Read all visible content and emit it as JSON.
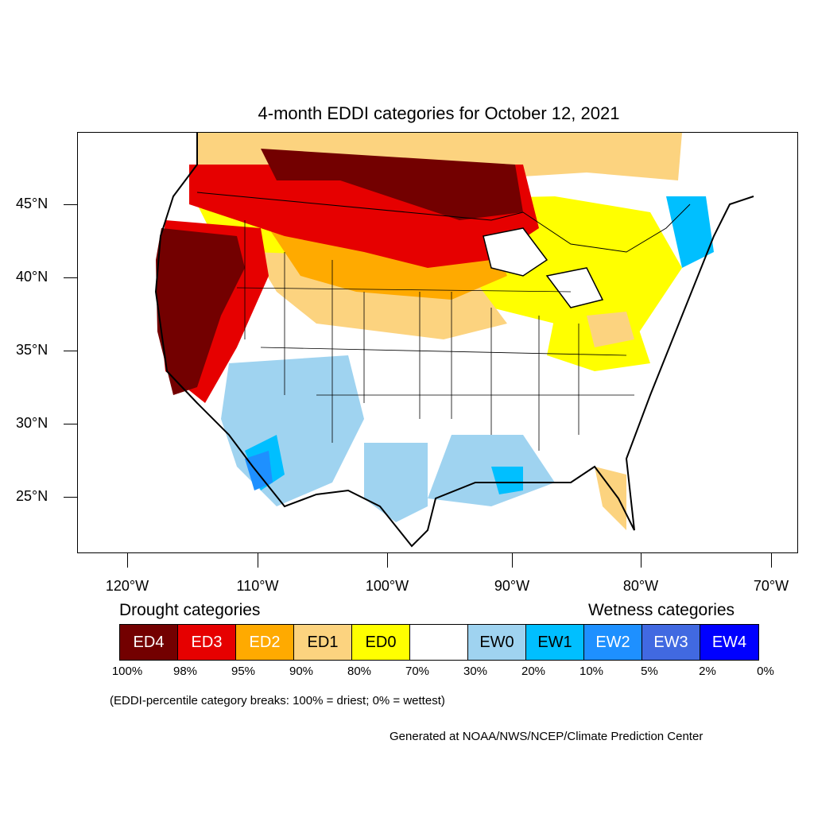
{
  "title": "4-month EDDI categories for October 12, 2021",
  "map": {
    "latitude_labels": [
      "45°N",
      "40°N",
      "35°N",
      "30°N",
      "25°N"
    ],
    "longitude_labels": [
      "120°W",
      "110°W",
      "100°W",
      "90°W",
      "80°W",
      "70°W"
    ],
    "region": "Contiguous United States"
  },
  "legend": {
    "drought_heading": "Drought categories",
    "wetness_heading": "Wetness categories",
    "categories": [
      {
        "label": "ED4",
        "color": "#730000",
        "text_color": "#ffffff"
      },
      {
        "label": "ED3",
        "color": "#e60000",
        "text_color": "#ffffff"
      },
      {
        "label": "ED2",
        "color": "#ffaa00",
        "text_color": "#ffffff"
      },
      {
        "label": "ED1",
        "color": "#fcd37f",
        "text_color": "#000000"
      },
      {
        "label": "ED0",
        "color": "#ffff00",
        "text_color": "#000000"
      },
      {
        "label": "",
        "color": "#ffffff",
        "text_color": "#000000"
      },
      {
        "label": "EW0",
        "color": "#9fd3f0",
        "text_color": "#000000"
      },
      {
        "label": "EW1",
        "color": "#00bfff",
        "text_color": "#000000"
      },
      {
        "label": "EW2",
        "color": "#1e90ff",
        "text_color": "#ffffff"
      },
      {
        "label": "EW3",
        "color": "#4169e1",
        "text_color": "#ffffff"
      },
      {
        "label": "EW4",
        "color": "#0000ff",
        "text_color": "#ffffff"
      }
    ],
    "breaks": [
      "100%",
      "98%",
      "95%",
      "90%",
      "80%",
      "70%",
      "30%",
      "20%",
      "10%",
      "5%",
      "2%",
      "0%"
    ],
    "note": "(EDDI-percentile category breaks: 100% = driest; 0% = wettest)"
  },
  "credit": "Generated at NOAA/NWS/NCEP/Climate Prediction Center"
}
